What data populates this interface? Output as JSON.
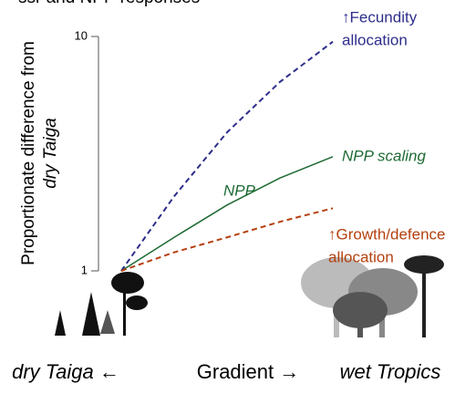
{
  "chart_data": {
    "type": "line",
    "title": "ssr and NPP responses",
    "y_label": [
      "Proportionate difference from",
      "dry Taiga"
    ],
    "x_labels": [
      "dry Taiga ←",
      "Gradient →",
      "wet Tropics"
    ],
    "log_y": true,
    "ylim": [
      1,
      10
    ],
    "yticks": [
      1,
      10
    ],
    "xlim": [
      0,
      1
    ],
    "x": [
      0,
      0.25,
      0.5,
      0.75,
      1
    ],
    "series": [
      {
        "name": "Fecundity allocation",
        "color": "#2e2e8c",
        "dash": true,
        "values": [
          1,
          2.08,
          3.9,
          6.4,
          9.5
        ]
      },
      {
        "name": "NPP scaling",
        "color": "#1f6b35",
        "dash": false,
        "values": [
          1,
          1.39,
          1.91,
          2.49,
          3.07
        ]
      },
      {
        "name": "Growth/defence allocation",
        "color": "#b5400f",
        "dash": true,
        "values": [
          1,
          1.2,
          1.39,
          1.62,
          1.85
        ]
      }
    ],
    "annotations": [
      {
        "lines": [
          "↑Fecundity",
          "allocation"
        ],
        "color": "#2e2e8c",
        "italic": false
      },
      {
        "lines": [
          "NPP scaling"
        ],
        "color": "#1f6b35",
        "italic": true
      },
      {
        "lines": [
          "NPP"
        ],
        "color": "#1f6b35",
        "italic": true
      },
      {
        "lines": [
          "↑Growth/defence",
          "allocation"
        ],
        "color": "#b5400f",
        "italic": false
      }
    ]
  }
}
